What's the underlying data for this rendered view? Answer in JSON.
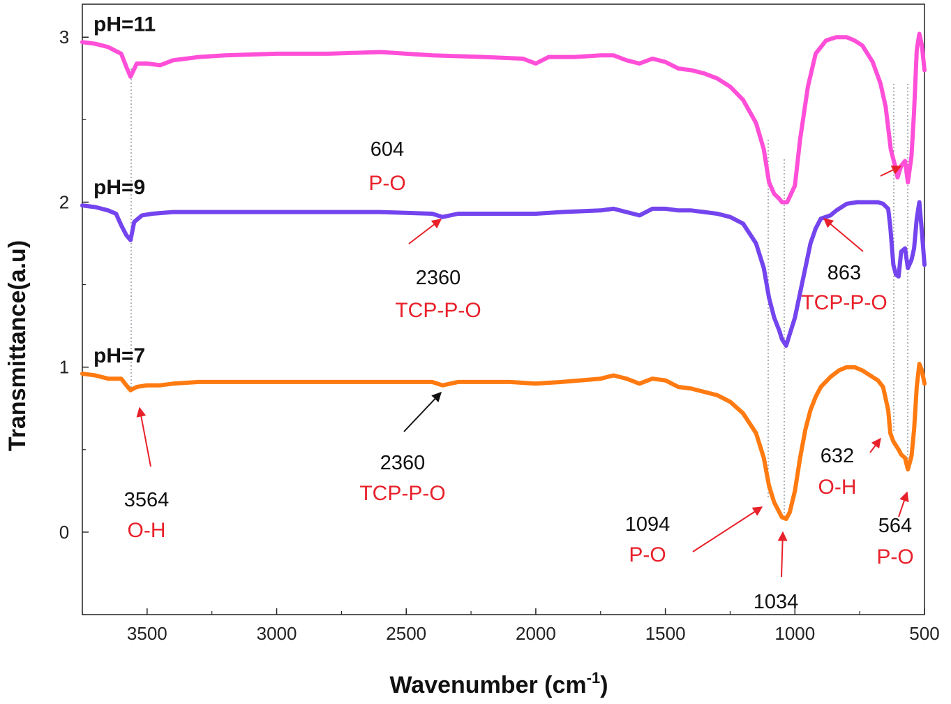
{
  "chart_data": {
    "type": "line",
    "xlabel": "Wavenumber (cm",
    "xlabel_sup": "-1",
    "xlabel_close": ")",
    "ylabel": "Transmittance(a.u)",
    "xlim": [
      3750,
      500
    ],
    "ylim": [
      -0.5,
      3.2
    ],
    "x_ticks": [
      3500,
      3000,
      2500,
      2000,
      1500,
      1000,
      500
    ],
    "y_ticks": [
      0,
      1,
      2,
      3
    ],
    "grid": false,
    "series": [
      {
        "name": "pH=11",
        "color": "#ff4fd8",
        "x": [
          3750,
          3700,
          3650,
          3600,
          3580,
          3564,
          3540,
          3500,
          3450,
          3400,
          3300,
          3200,
          3000,
          2800,
          2600,
          2500,
          2400,
          2200,
          2050,
          2000,
          1950,
          1850,
          1750,
          1700,
          1650,
          1600,
          1550,
          1500,
          1450,
          1400,
          1350,
          1300,
          1250,
          1200,
          1150,
          1120,
          1100,
          1080,
          1060,
          1050,
          1030,
          1000,
          980,
          950,
          920,
          880,
          840,
          800,
          770,
          740,
          700,
          670,
          650,
          630,
          610,
          604,
          590,
          575,
          564,
          550,
          540,
          530,
          520,
          510,
          500
        ],
        "y": [
          2.97,
          2.96,
          2.94,
          2.9,
          2.82,
          2.76,
          2.84,
          2.84,
          2.83,
          2.86,
          2.88,
          2.89,
          2.9,
          2.9,
          2.91,
          2.9,
          2.89,
          2.88,
          2.87,
          2.84,
          2.88,
          2.88,
          2.89,
          2.89,
          2.86,
          2.84,
          2.87,
          2.85,
          2.81,
          2.8,
          2.78,
          2.75,
          2.7,
          2.62,
          2.48,
          2.32,
          2.12,
          2.05,
          2.02,
          2.0,
          2.0,
          2.1,
          2.38,
          2.7,
          2.9,
          2.98,
          3.0,
          3.0,
          2.98,
          2.95,
          2.85,
          2.72,
          2.58,
          2.32,
          2.2,
          2.15,
          2.22,
          2.25,
          2.12,
          2.28,
          2.55,
          2.92,
          3.02,
          2.95,
          2.8
        ]
      },
      {
        "name": "pH=9",
        "color": "#7444ee",
        "x": [
          3750,
          3700,
          3650,
          3620,
          3600,
          3580,
          3564,
          3550,
          3520,
          3480,
          3400,
          3300,
          3200,
          3000,
          2800,
          2600,
          2400,
          2360,
          2300,
          2100,
          2000,
          1900,
          1750,
          1700,
          1650,
          1600,
          1550,
          1500,
          1450,
          1400,
          1350,
          1300,
          1250,
          1200,
          1150,
          1120,
          1100,
          1080,
          1060,
          1050,
          1034,
          1020,
          1000,
          980,
          960,
          940,
          920,
          900,
          863,
          840,
          800,
          760,
          720,
          700,
          680,
          660,
          640,
          632,
          620,
          610,
          600,
          590,
          575,
          564,
          550,
          540,
          530,
          520,
          510,
          500
        ],
        "y": [
          1.98,
          1.97,
          1.95,
          1.93,
          1.86,
          1.8,
          1.77,
          1.88,
          1.92,
          1.93,
          1.94,
          1.94,
          1.94,
          1.94,
          1.94,
          1.94,
          1.93,
          1.91,
          1.93,
          1.93,
          1.93,
          1.94,
          1.95,
          1.96,
          1.94,
          1.92,
          1.96,
          1.96,
          1.95,
          1.95,
          1.94,
          1.93,
          1.91,
          1.87,
          1.75,
          1.6,
          1.42,
          1.3,
          1.22,
          1.17,
          1.13,
          1.2,
          1.3,
          1.45,
          1.6,
          1.75,
          1.84,
          1.9,
          1.92,
          1.95,
          1.99,
          2.0,
          2.0,
          2.0,
          2.0,
          1.99,
          1.96,
          1.85,
          1.62,
          1.56,
          1.55,
          1.7,
          1.72,
          1.6,
          1.65,
          1.72,
          1.9,
          2.0,
          1.82,
          1.62
        ]
      },
      {
        "name": "pH=7",
        "color": "#ff7a10",
        "x": [
          3750,
          3700,
          3650,
          3600,
          3580,
          3564,
          3540,
          3500,
          3450,
          3400,
          3300,
          3200,
          3000,
          2800,
          2600,
          2400,
          2360,
          2300,
          2100,
          2000,
          1900,
          1750,
          1700,
          1650,
          1600,
          1550,
          1500,
          1450,
          1400,
          1350,
          1300,
          1250,
          1200,
          1150,
          1120,
          1100,
          1080,
          1060,
          1050,
          1034,
          1020,
          1000,
          980,
          960,
          940,
          920,
          900,
          863,
          830,
          800,
          770,
          740,
          710,
          680,
          660,
          640,
          632,
          620,
          600,
          590,
          575,
          564,
          550,
          540,
          530,
          520,
          510,
          500
        ],
        "y": [
          0.96,
          0.95,
          0.93,
          0.93,
          0.89,
          0.86,
          0.88,
          0.89,
          0.89,
          0.9,
          0.91,
          0.91,
          0.91,
          0.91,
          0.91,
          0.91,
          0.89,
          0.91,
          0.91,
          0.9,
          0.91,
          0.93,
          0.95,
          0.93,
          0.9,
          0.93,
          0.92,
          0.88,
          0.87,
          0.85,
          0.83,
          0.79,
          0.72,
          0.6,
          0.45,
          0.28,
          0.18,
          0.12,
          0.09,
          0.08,
          0.12,
          0.25,
          0.45,
          0.62,
          0.74,
          0.82,
          0.88,
          0.94,
          0.98,
          1.0,
          1.0,
          0.98,
          0.95,
          0.92,
          0.88,
          0.74,
          0.6,
          0.55,
          0.5,
          0.47,
          0.45,
          0.38,
          0.46,
          0.62,
          0.88,
          1.02,
          0.98,
          0.9
        ]
      }
    ],
    "annotations": [
      {
        "number": "604",
        "label": "P-O",
        "number_xy": [
          555,
          213
        ],
        "label_xy": [
          555,
          262
        ],
        "arrow_from": [
          1262,
          252
        ],
        "arrow_to": [
          1291,
          238
        ],
        "arrow_color": "#e8202a"
      },
      {
        "number": "2360",
        "label": "TCP-P-O",
        "number_xy": [
          628,
          397
        ],
        "label_xy": [
          628,
          444
        ],
        "arrow_from": [
          586,
          349
        ],
        "arrow_to": [
          632,
          314
        ],
        "arrow_color": "#e8202a"
      },
      {
        "number": "863",
        "label": "TCP-P-O",
        "number_xy": [
          1210,
          390
        ],
        "label_xy": [
          1210,
          433
        ],
        "arrow_from": [
          1237,
          360
        ],
        "arrow_to": [
          1181,
          313
        ],
        "arrow_color": "#e8202a"
      },
      {
        "number": "2360",
        "label": "TCP-P-O",
        "number_xy": [
          577,
          662
        ],
        "label_xy": [
          577,
          706
        ],
        "arrow_from": [
          579,
          618
        ],
        "arrow_to": [
          632,
          562
        ],
        "arrow_color": "#111111"
      },
      {
        "number": "632",
        "label": "O-H",
        "number_xy": [
          1200,
          652
        ],
        "label_xy": [
          1200,
          697
        ],
        "arrow_from": [
          1247,
          648
        ],
        "arrow_to": [
          1262,
          628
        ],
        "arrow_color": "#e8202a"
      },
      {
        "number": "3564",
        "label": "O-H",
        "number_xy": [
          210,
          715
        ],
        "label_xy": [
          210,
          759
        ],
        "arrow_from": [
          216,
          668
        ],
        "arrow_to": [
          200,
          584
        ],
        "arrow_color": "#e8202a"
      },
      {
        "number": "1094",
        "label": "P-O",
        "number_xy": [
          928,
          750
        ],
        "label_xy": [
          928,
          794
        ],
        "arrow_from": [
          993,
          790
        ],
        "arrow_to": [
          1092,
          726
        ],
        "arrow_color": "#e8202a"
      },
      {
        "number": "564",
        "label": "P-O",
        "number_xy": [
          1283,
          752
        ],
        "label_xy": [
          1283,
          797
        ],
        "arrow_from": [
          1288,
          740
        ],
        "arrow_to": [
          1300,
          705
        ],
        "arrow_color": "#e8202a"
      },
      {
        "number": "1034",
        "label": "",
        "number_xy": [
          1112,
          861
        ],
        "label_xy": [
          1112,
          861
        ],
        "arrow_from": [
          1120,
          826
        ],
        "arrow_to": [
          1122,
          762
        ],
        "arrow_color": "#e8202a"
      }
    ]
  }
}
